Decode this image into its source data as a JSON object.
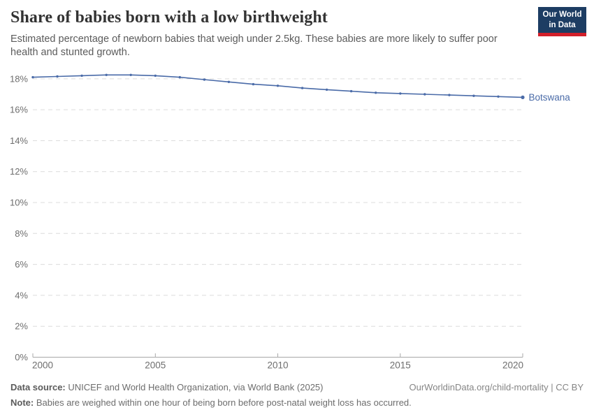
{
  "header": {
    "logo": {
      "line1": "Our World",
      "line2": "in Data",
      "bg_color": "#1d3d63",
      "accent_color": "#d21f2a"
    }
  },
  "chart_data": {
    "type": "line",
    "title": "Share of babies born with a low birthweight",
    "subtitle": "Estimated percentage of newborn babies that weigh under 2.5kg. These babies are more likely to suffer poor health and stunted growth.",
    "xlabel": "",
    "ylabel": "",
    "x": [
      2000,
      2001,
      2002,
      2003,
      2004,
      2005,
      2006,
      2007,
      2008,
      2009,
      2010,
      2011,
      2012,
      2013,
      2014,
      2015,
      2016,
      2017,
      2018,
      2019,
      2020
    ],
    "series": [
      {
        "name": "Botswana",
        "color": "#4a6ba8",
        "values": [
          18.1,
          18.15,
          18.2,
          18.25,
          18.25,
          18.2,
          18.1,
          17.95,
          17.8,
          17.65,
          17.55,
          17.4,
          17.3,
          17.2,
          17.1,
          17.05,
          17.0,
          16.95,
          16.9,
          16.85,
          16.8
        ]
      }
    ],
    "xlim": [
      2000,
      2020
    ],
    "ylim": [
      0,
      18
    ],
    "yticks": [
      0,
      2,
      4,
      6,
      8,
      10,
      12,
      14,
      16,
      18
    ],
    "ytick_suffix": "%",
    "xticks": [
      2000,
      2005,
      2010,
      2015,
      2020
    ],
    "grid": "horizontal-dashed",
    "legend_position": "end-of-line-label",
    "grid_color": "#dcdcdc",
    "axis_color": "#a8a8a8",
    "tick_label_color": "#6e6e6e"
  },
  "footer": {
    "data_source_label": "Data source:",
    "data_source_text": " UNICEF and World Health Organization, via World Bank (2025)",
    "link": "OurWorldinData.org/child-mortality | CC BY",
    "note_label": "Note:",
    "note_text": " Babies are weighed within one hour of being born before post-natal weight loss has occurred."
  }
}
